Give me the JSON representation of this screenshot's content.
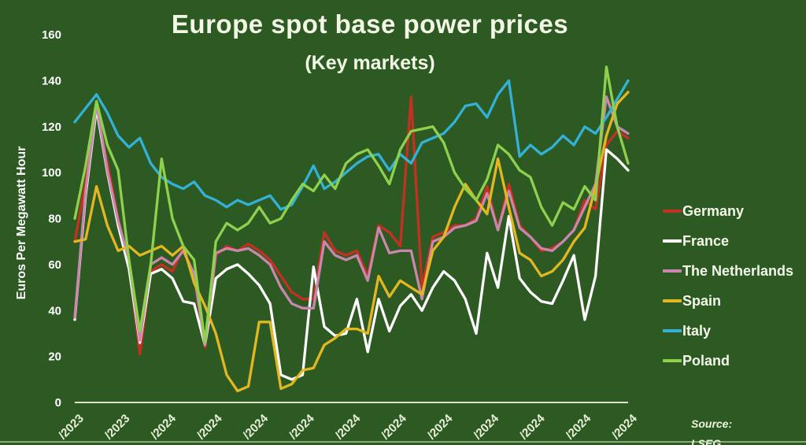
{
  "title": "Europe spot base power prices",
  "subtitle": "(Key markets)",
  "source": {
    "label": "Source:",
    "name": "LSEG"
  },
  "colors": {
    "background": "#2d5a23",
    "text": "#f2f7e6",
    "axis": "#d9e6c8",
    "germany": "#c23122",
    "france": "#ffffff",
    "netherlands": "#c987ad",
    "spain": "#e3b722",
    "italy": "#33b1d6",
    "poland": "#8fd14f"
  },
  "chart_data": {
    "type": "line",
    "title": "Europe spot base power prices",
    "subtitle": "(Key markets)",
    "xlabel": "",
    "ylabel": "Euros Per Megawatt Hour",
    "ylim": [
      0,
      160
    ],
    "yticks": [
      0,
      20,
      40,
      60,
      80,
      100,
      120,
      140,
      160
    ],
    "grid": false,
    "legend_position": "right",
    "x_tick_labels": [
      "/2023",
      "/2023",
      "/2024",
      "/2024",
      "/2024",
      "/2024",
      "/2024",
      "/2024",
      "/2024",
      "/2024",
      "/2024",
      "/2024",
      "/2024"
    ],
    "x_unit": "weekly points, Nov 2023 - Nov 2024",
    "series": [
      {
        "name": "Germany",
        "color": "#c23122",
        "values": [
          70,
          96,
          127,
          104,
          80,
          60,
          21,
          57,
          60,
          57,
          67,
          55,
          24,
          64,
          68,
          66,
          69,
          66,
          62,
          55,
          48,
          45,
          45,
          74,
          66,
          64,
          66,
          55,
          77,
          74,
          68,
          133,
          50,
          72,
          74,
          77,
          77,
          80,
          94,
          75,
          95,
          77,
          72,
          66,
          67,
          70,
          75,
          88,
          84,
          112,
          118,
          115
        ]
      },
      {
        "name": "France",
        "color": "#ffffff",
        "values": [
          36,
          90,
          128,
          100,
          77,
          58,
          26,
          56,
          58,
          54,
          44,
          43,
          25,
          54,
          58,
          60,
          56,
          51,
          43,
          12,
          10,
          12,
          59,
          33,
          29,
          30,
          45,
          22,
          45,
          31,
          42,
          47,
          40,
          50,
          57,
          53,
          45,
          30,
          65,
          50,
          81,
          54,
          48,
          44,
          43,
          53,
          64,
          36,
          55,
          110,
          106,
          101
        ]
      },
      {
        "name": "The Netherlands",
        "color": "#c987ad",
        "values": [
          37,
          92,
          130,
          101,
          79,
          62,
          27,
          60,
          63,
          60,
          66,
          56,
          25,
          65,
          67,
          66,
          67,
          64,
          60,
          50,
          43,
          41,
          41,
          70,
          64,
          62,
          64,
          53,
          76,
          65,
          66,
          66,
          45,
          70,
          72,
          76,
          77,
          79,
          91,
          75,
          92,
          76,
          72,
          67,
          66,
          70,
          75,
          85,
          95,
          133,
          120,
          117
        ]
      },
      {
        "name": "Spain",
        "color": "#e3b722",
        "values": [
          70,
          71,
          94,
          77,
          66,
          68,
          64,
          66,
          68,
          64,
          68,
          52,
          42,
          30,
          12,
          5,
          7,
          35,
          35,
          6,
          8,
          14,
          15,
          25,
          28,
          32,
          32,
          30,
          55,
          46,
          53,
          50,
          47,
          66,
          72,
          85,
          95,
          88,
          82,
          106,
          85,
          65,
          62,
          55,
          57,
          62,
          70,
          76,
          94,
          116,
          130,
          135
        ]
      },
      {
        "name": "Italy",
        "color": "#33b1d6",
        "values": [
          122,
          128,
          134,
          126,
          116,
          111,
          115,
          104,
          98,
          95,
          93,
          96,
          90,
          88,
          85,
          88,
          86,
          88,
          90,
          84,
          86,
          94,
          103,
          93,
          96,
          100,
          104,
          107,
          108,
          101,
          108,
          104,
          113,
          115,
          117,
          122,
          129,
          130,
          124,
          134,
          140,
          107,
          112,
          108,
          111,
          116,
          112,
          120,
          117,
          124,
          132,
          140
        ]
      },
      {
        "name": "Poland",
        "color": "#8fd14f",
        "values": [
          80,
          103,
          131,
          112,
          101,
          62,
          31,
          60,
          106,
          80,
          68,
          62,
          26,
          70,
          78,
          75,
          78,
          85,
          78,
          80,
          88,
          95,
          92,
          99,
          93,
          104,
          108,
          110,
          103,
          95,
          110,
          118,
          119,
          120,
          113,
          100,
          93,
          88,
          97,
          112,
          108,
          101,
          98,
          85,
          77,
          87,
          84,
          94,
          88,
          146,
          120,
          104
        ]
      }
    ]
  }
}
